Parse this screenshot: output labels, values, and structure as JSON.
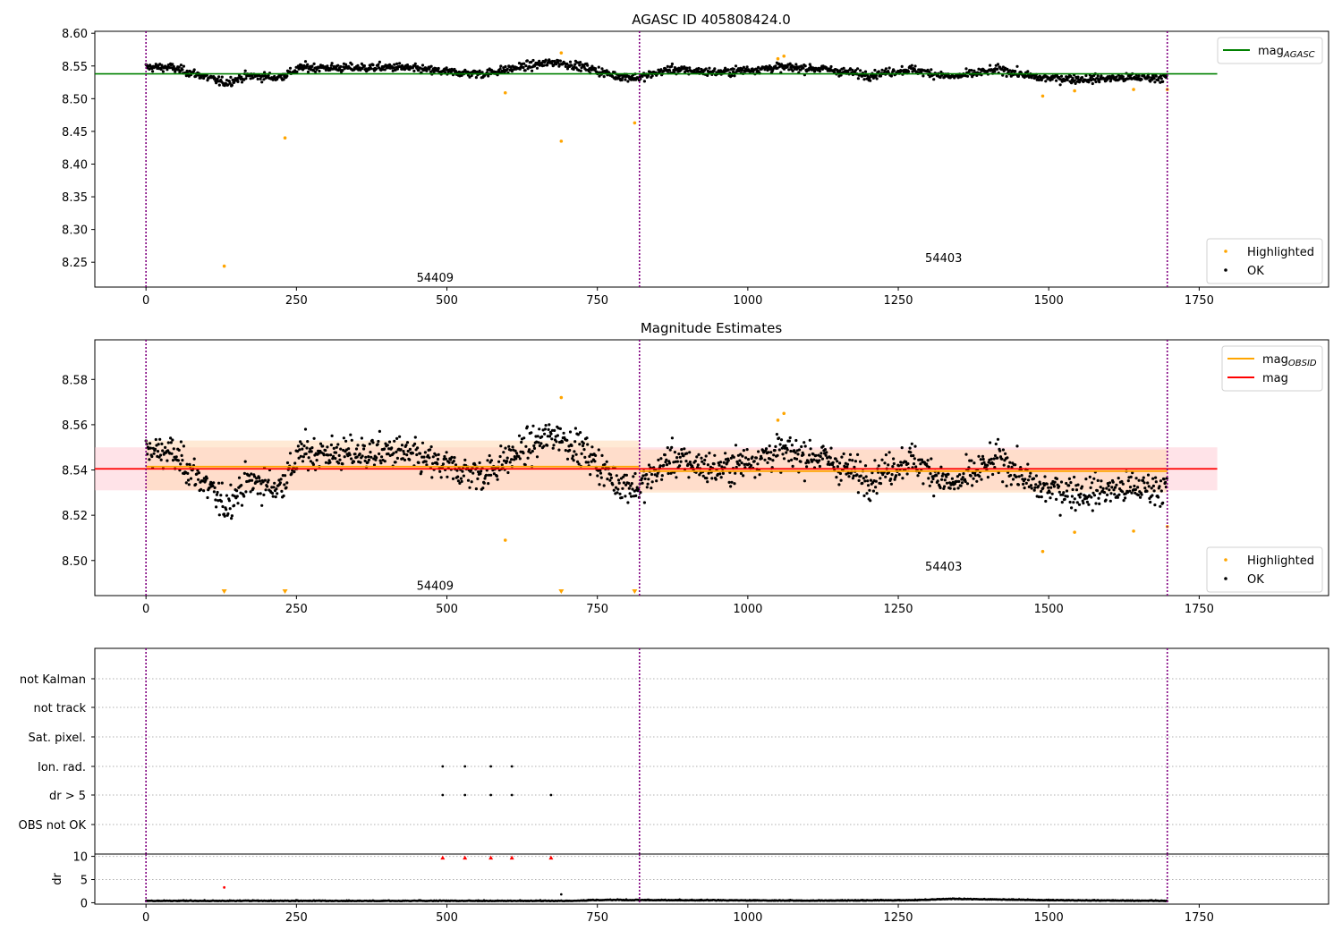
{
  "figure": {
    "title_top": "AGASC ID 405808424.0",
    "title_mid": "Magnitude Estimates"
  },
  "colors": {
    "agasc": "#008000",
    "obsid": "#ffa500",
    "mag": "#ff0000",
    "ok": "#000000",
    "highlighted": "#ffa500",
    "boundary": "#800080",
    "band_mag": "#ffc0cb",
    "band_obsid": "#ffd9b3"
  },
  "chart_data": [
    {
      "type": "scatter",
      "title": "AGASC ID 405808424.0",
      "xlim": [
        -85,
        1965
      ],
      "ylim": [
        8.212,
        8.603
      ],
      "xticks": [
        0,
        250,
        500,
        750,
        1000,
        1250,
        1500,
        1750
      ],
      "yticks": [
        8.25,
        8.3,
        8.35,
        8.4,
        8.45,
        8.5,
        8.55,
        8.6
      ],
      "ytick_labels": [
        "8.25",
        "8.30",
        "8.35",
        "8.40",
        "8.45",
        "8.50",
        "8.55",
        "8.60"
      ],
      "lines": [
        {
          "name": "mag_AGASC",
          "y": 8.538,
          "x": [
            -85,
            1780
          ],
          "color": "#008000"
        }
      ],
      "obsid_boundaries": [
        0,
        820,
        1697
      ],
      "obsid_labels": [
        {
          "text": "54409",
          "x": 408,
          "y": 8.22
        },
        {
          "text": "54403",
          "x": 1253,
          "y": 8.25
        }
      ],
      "ok_profile": [
        [
          0,
          8.548
        ],
        [
          40,
          8.548
        ],
        [
          90,
          8.536
        ],
        [
          130,
          8.524
        ],
        [
          170,
          8.535
        ],
        [
          220,
          8.532
        ],
        [
          260,
          8.548
        ],
        [
          330,
          8.547
        ],
        [
          420,
          8.548
        ],
        [
          500,
          8.541
        ],
        [
          560,
          8.538
        ],
        [
          620,
          8.548
        ],
        [
          680,
          8.556
        ],
        [
          730,
          8.548
        ],
        [
          780,
          8.535
        ],
        [
          820,
          8.532
        ],
        [
          870,
          8.545
        ],
        [
          950,
          8.54
        ],
        [
          1050,
          8.548
        ],
        [
          1120,
          8.546
        ],
        [
          1200,
          8.536
        ],
        [
          1270,
          8.545
        ],
        [
          1340,
          8.533
        ],
        [
          1420,
          8.545
        ],
        [
          1480,
          8.532
        ],
        [
          1560,
          8.53
        ],
        [
          1640,
          8.532
        ],
        [
          1697,
          8.532
        ]
      ],
      "highlighted_points": [
        [
          130,
          8.244
        ],
        [
          231,
          8.44
        ],
        [
          597,
          8.509
        ],
        [
          690,
          8.435
        ],
        [
          690,
          8.57
        ],
        [
          812,
          8.463
        ],
        [
          1050,
          8.561
        ],
        [
          1060,
          8.565
        ],
        [
          1490,
          8.504
        ],
        [
          1543,
          8.512
        ],
        [
          1641,
          8.514
        ],
        [
          1697,
          8.514
        ]
      ],
      "legends": [
        {
          "position": "top-right",
          "entries": [
            {
              "label": "mag",
              "sub": "AGASC",
              "kind": "line",
              "color": "#008000"
            }
          ]
        },
        {
          "position": "bottom-right",
          "entries": [
            {
              "label": "Highlighted",
              "kind": "dot",
              "color": "#ffa500"
            },
            {
              "label": "OK",
              "kind": "dot",
              "color": "#000000"
            }
          ]
        }
      ]
    },
    {
      "type": "scatter",
      "title": "Magnitude Estimates",
      "xlim": [
        -85,
        1965
      ],
      "ylim": [
        8.4845,
        8.5975
      ],
      "xticks": [
        0,
        250,
        500,
        750,
        1000,
        1250,
        1500,
        1750
      ],
      "yticks": [
        8.5,
        8.52,
        8.54,
        8.56,
        8.58
      ],
      "ytick_labels": [
        "8.50",
        "8.52",
        "8.54",
        "8.56",
        "8.58"
      ],
      "lines": [
        {
          "name": "mag_OBSID 54409",
          "y": 8.5415,
          "x": [
            0,
            820
          ],
          "color": "#ffa500"
        },
        {
          "name": "mag_OBSID 54403",
          "y": 8.5395,
          "x": [
            820,
            1697
          ],
          "color": "#ffa500"
        },
        {
          "name": "mag",
          "y": 8.5405,
          "x": [
            -85,
            1780
          ],
          "color": "#ff0000"
        }
      ],
      "bands": [
        {
          "x": [
            -85,
            1780
          ],
          "y": [
            8.531,
            8.55
          ],
          "color": "#ffc0cb",
          "opacity": 0.45
        },
        {
          "x": [
            0,
            820
          ],
          "y": [
            8.531,
            8.553
          ],
          "color": "#ffd9b3",
          "opacity": 0.55
        },
        {
          "x": [
            820,
            1697
          ],
          "y": [
            8.53,
            8.549
          ],
          "color": "#ffd9b3",
          "opacity": 0.55
        }
      ],
      "obsid_boundaries": [
        0,
        820,
        1697
      ],
      "obsid_labels": [
        {
          "text": "54409",
          "x": 408,
          "y": 8.487
        },
        {
          "text": "54403",
          "x": 1253,
          "y": 8.4955
        }
      ],
      "ok_profile": [
        [
          0,
          8.548
        ],
        [
          40,
          8.548
        ],
        [
          90,
          8.536
        ],
        [
          130,
          8.524
        ],
        [
          170,
          8.535
        ],
        [
          220,
          8.532
        ],
        [
          260,
          8.548
        ],
        [
          330,
          8.547
        ],
        [
          420,
          8.548
        ],
        [
          500,
          8.541
        ],
        [
          560,
          8.538
        ],
        [
          620,
          8.548
        ],
        [
          680,
          8.556
        ],
        [
          730,
          8.548
        ],
        [
          780,
          8.535
        ],
        [
          820,
          8.532
        ],
        [
          870,
          8.545
        ],
        [
          950,
          8.54
        ],
        [
          1050,
          8.548
        ],
        [
          1120,
          8.546
        ],
        [
          1200,
          8.536
        ],
        [
          1270,
          8.545
        ],
        [
          1340,
          8.533
        ],
        [
          1420,
          8.545
        ],
        [
          1480,
          8.532
        ],
        [
          1560,
          8.53
        ],
        [
          1640,
          8.532
        ],
        [
          1697,
          8.532
        ]
      ],
      "highlighted_points": [
        [
          597,
          8.509
        ],
        [
          690,
          8.572
        ],
        [
          1050,
          8.562
        ],
        [
          1060,
          8.565
        ],
        [
          1490,
          8.504
        ],
        [
          1543,
          8.5125
        ],
        [
          1641,
          8.513
        ],
        [
          1697,
          8.515
        ]
      ],
      "highlighted_below_range": [
        130,
        231,
        690,
        812
      ],
      "legends": [
        {
          "position": "top-right",
          "entries": [
            {
              "label": "mag",
              "sub": "OBSID",
              "kind": "line",
              "color": "#ffa500"
            },
            {
              "label": "mag",
              "kind": "line",
              "color": "#ff0000"
            }
          ]
        },
        {
          "position": "bottom-right",
          "entries": [
            {
              "label": "Highlighted",
              "kind": "dot",
              "color": "#ffa500"
            },
            {
              "label": "OK",
              "kind": "dot",
              "color": "#000000"
            }
          ]
        }
      ]
    },
    {
      "type": "scatter",
      "title": "",
      "xlim": [
        -85,
        1965
      ],
      "categories": [
        "not Kalman",
        "not track",
        "Sat. pixel.",
        "Ion. rad.",
        "dr > 5",
        "OBS not OK"
      ],
      "flags": {
        "not Kalman": [],
        "not track": [],
        "Sat. pixel.": [],
        "Ion. rad.": [
          493,
          530,
          573,
          608
        ],
        "dr > 5": [
          493,
          530,
          573,
          608,
          673
        ],
        "OBS not OK": []
      },
      "obsid_boundaries": [
        0,
        820,
        1697
      ]
    },
    {
      "type": "scatter",
      "title": "",
      "ylabel": "dr",
      "xlim": [
        -85,
        1965
      ],
      "ylim": [
        -0.3,
        10.5
      ],
      "xticks": [
        0,
        250,
        500,
        750,
        1000,
        1250,
        1500,
        1750
      ],
      "yticks": [
        0,
        5,
        10
      ],
      "ytick_labels": [
        "0",
        "5",
        "10"
      ],
      "baseline_profile": [
        [
          0,
          0.35
        ],
        [
          700,
          0.35
        ],
        [
          760,
          0.55
        ],
        [
          1100,
          0.4
        ],
        [
          1280,
          0.5
        ],
        [
          1330,
          0.75
        ],
        [
          1360,
          0.75
        ],
        [
          1500,
          0.5
        ],
        [
          1697,
          0.35
        ]
      ],
      "clipped_points": [
        [
          493,
          9.7
        ],
        [
          530,
          9.7
        ],
        [
          573,
          9.7
        ],
        [
          608,
          9.7
        ],
        [
          673,
          9.7
        ]
      ],
      "highlighted_dr": [
        [
          130,
          3.3
        ]
      ],
      "ok_outliers": [
        [
          690,
          1.8
        ]
      ],
      "obsid_boundaries": [
        0,
        820,
        1697
      ]
    }
  ]
}
